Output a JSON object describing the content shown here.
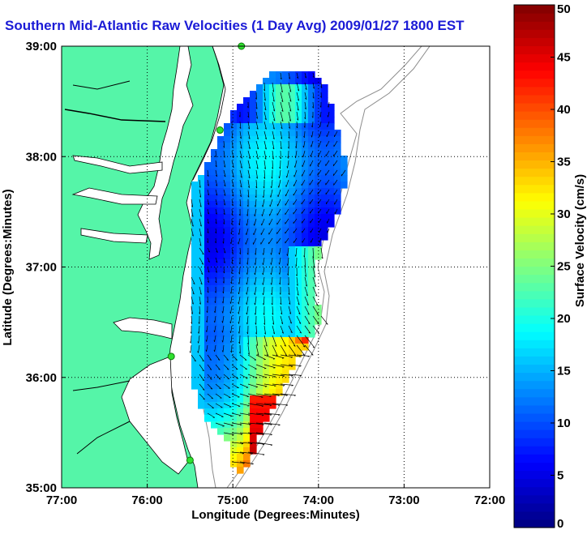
{
  "title": "Southern Mid-Atlantic Raw Velocities (1 Day Avg) 2009/01/27 1800 EST",
  "map": {
    "xlabel": "Longitude (Degrees:Minutes)",
    "ylabel": "Latitude (Degrees:Minutes)",
    "x_ticks": [
      {
        "value": -77,
        "label": "77:00"
      },
      {
        "value": -76,
        "label": "76:00"
      },
      {
        "value": -75,
        "label": "75:00"
      },
      {
        "value": -74,
        "label": "74:00"
      },
      {
        "value": -73,
        "label": "73:00"
      },
      {
        "value": -72,
        "label": "72:00"
      }
    ],
    "y_ticks": [
      {
        "value": 39,
        "label": "39:00"
      },
      {
        "value": 38,
        "label": "38:00"
      },
      {
        "value": 37,
        "label": "37:00"
      },
      {
        "value": 36,
        "label": "36:00"
      },
      {
        "value": 35,
        "label": "35:00"
      }
    ],
    "xlim": [
      -77,
      -72
    ],
    "ylim": [
      35,
      39
    ],
    "grid": "dotted",
    "land_color": "#55f5a8",
    "water_color": "#ffffff",
    "stations": [
      {
        "lon": -74.9,
        "lat": 39.0
      },
      {
        "lon": -75.15,
        "lat": 38.24
      },
      {
        "lon": -75.72,
        "lat": 36.19
      },
      {
        "lon": -75.5,
        "lat": 35.25
      }
    ]
  },
  "colorbar": {
    "label": "Surface Velocity (cm/s)",
    "min": 0,
    "max": 50,
    "ticks": [
      {
        "value": 0,
        "label": "0"
      },
      {
        "value": 5,
        "label": "5"
      },
      {
        "value": 10,
        "label": "10"
      },
      {
        "value": 15,
        "label": "15"
      },
      {
        "value": 20,
        "label": "20"
      },
      {
        "value": 25,
        "label": "25"
      },
      {
        "value": 30,
        "label": "30"
      },
      {
        "value": 35,
        "label": "35"
      },
      {
        "value": 40,
        "label": "40"
      },
      {
        "value": 45,
        "label": "45"
      },
      {
        "value": 50,
        "label": "50"
      }
    ],
    "colormap": "jet"
  }
}
